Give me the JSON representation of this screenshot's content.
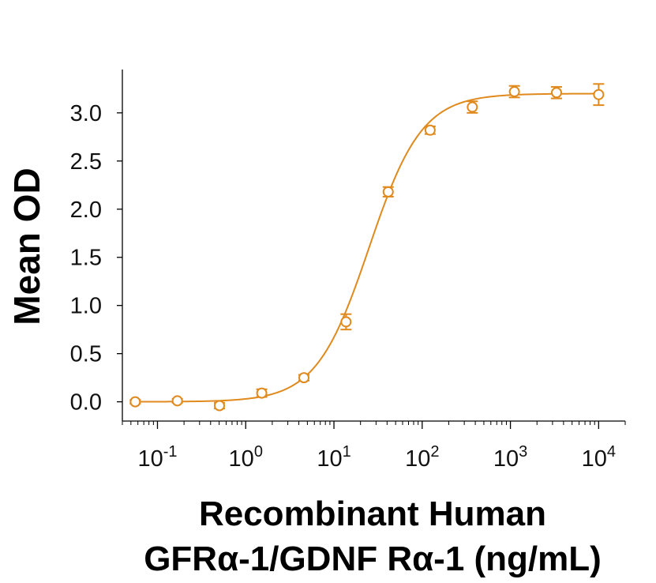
{
  "chart_data": {
    "type": "scatter",
    "xlabel_line1": "Recombinant Human",
    "xlabel_line2": "GFRα-1/GDNF Rα-1 (ng/mL)",
    "ylabel": "Mean OD",
    "x_scale": "log",
    "xlim": [
      0.04,
      20000
    ],
    "ylim": [
      -0.2,
      3.45
    ],
    "x_ticks": [
      {
        "value": 0.1,
        "base": "10",
        "exp": "-1"
      },
      {
        "value": 1,
        "base": "10",
        "exp": "0"
      },
      {
        "value": 10,
        "base": "10",
        "exp": "1"
      },
      {
        "value": 100,
        "base": "10",
        "exp": "2"
      },
      {
        "value": 1000,
        "base": "10",
        "exp": "3"
      },
      {
        "value": 10000,
        "base": "10",
        "exp": "4"
      }
    ],
    "y_ticks": [
      "0.0",
      "0.5",
      "1.0",
      "1.5",
      "2.0",
      "2.5",
      "3.0"
    ],
    "color": "#E08A1E",
    "grid": false,
    "legend": "none",
    "series": [
      {
        "x": [
          0.056,
          0.168,
          0.504,
          1.52,
          4.57,
          13.7,
          41.2,
          123,
          370,
          1110,
          3330,
          10000
        ],
        "y": [
          0.0,
          0.01,
          -0.04,
          0.09,
          0.25,
          0.83,
          2.18,
          2.82,
          3.06,
          3.22,
          3.21,
          3.19
        ],
        "err": [
          0.02,
          0.02,
          0.03,
          0.04,
          0.03,
          0.08,
          0.05,
          0.04,
          0.06,
          0.06,
          0.06,
          0.11
        ]
      }
    ],
    "fit_curve": {
      "model": "4PL",
      "bottom": 0.0,
      "top": 3.2,
      "ec50": 25,
      "hill": 1.45
    }
  }
}
